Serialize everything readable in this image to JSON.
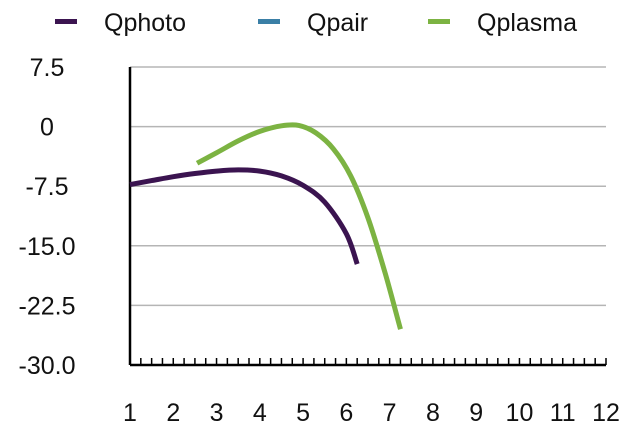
{
  "chart_data": {
    "type": "line",
    "title": "",
    "xlabel": "",
    "ylabel": "",
    "xlim": [
      1,
      12
    ],
    "ylim": [
      -30,
      7.5
    ],
    "x_ticks": [
      1,
      2,
      3,
      4,
      5,
      6,
      7,
      8,
      9,
      10,
      11,
      12
    ],
    "x_tick_labels": [
      "1",
      "2",
      "3",
      "4",
      "5",
      "6",
      "7",
      "8",
      "9",
      "10",
      "11",
      "12"
    ],
    "y_ticks": [
      7.5,
      0,
      -7.5,
      -15,
      -22.5,
      -30
    ],
    "y_tick_labels": [
      "7.5",
      "0",
      "-7.5",
      "-15.0",
      "-22.5",
      "-30.0"
    ],
    "grid": true,
    "legend_position": "top",
    "series": [
      {
        "name": "Qphoto",
        "color": "#3b1450",
        "points": [
          [
            1.0,
            -7.3
          ],
          [
            1.5,
            -6.8
          ],
          [
            2.0,
            -6.3
          ],
          [
            2.5,
            -5.9
          ],
          [
            3.0,
            -5.6
          ],
          [
            3.5,
            -5.45
          ],
          [
            4.0,
            -5.6
          ],
          [
            4.5,
            -6.2
          ],
          [
            5.0,
            -7.4
          ],
          [
            5.5,
            -9.5
          ],
          [
            6.0,
            -13.5
          ],
          [
            6.25,
            -17.3
          ]
        ]
      },
      {
        "name": "Qpair",
        "color": "#3a7fa6",
        "points": []
      },
      {
        "name": "Qplasma",
        "color": "#7cb342",
        "points": [
          [
            2.55,
            -4.6
          ],
          [
            3.0,
            -3.3
          ],
          [
            3.5,
            -1.8
          ],
          [
            4.0,
            -0.6
          ],
          [
            4.5,
            0.1
          ],
          [
            4.9,
            0.15
          ],
          [
            5.3,
            -0.8
          ],
          [
            5.7,
            -2.8
          ],
          [
            6.1,
            -6.2
          ],
          [
            6.5,
            -11.5
          ],
          [
            6.9,
            -18.5
          ],
          [
            7.25,
            -25.5
          ]
        ]
      }
    ]
  }
}
